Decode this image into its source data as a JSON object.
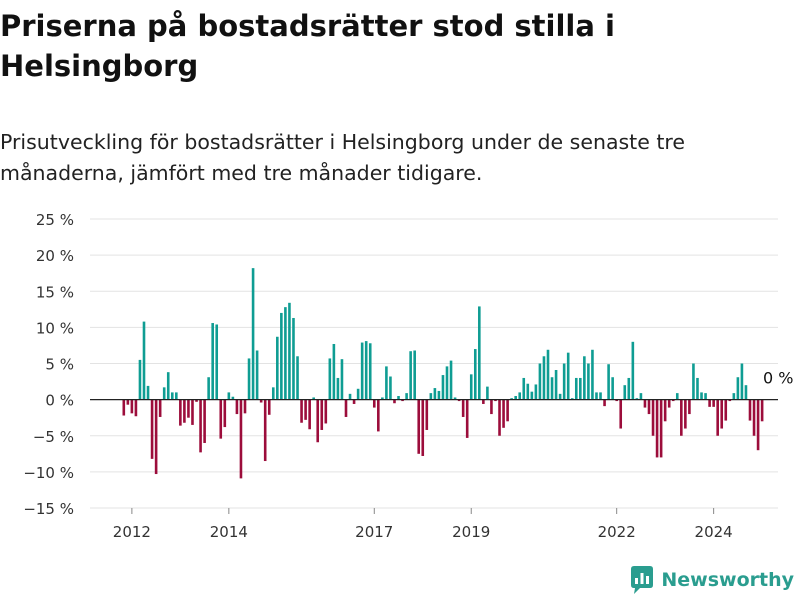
{
  "title": "Priserna på bostadsrätter stod stilla i Helsingborg",
  "subtitle": "Prisutveckling för bostadsrätter i Helsingborg under de senaste tre månaderna, jämfört med tre månader tidigare.",
  "brand": {
    "name": "Newsworthy",
    "icon": "newsworthy-logo-icon"
  },
  "colors": {
    "positive": "#0f9d93",
    "negative": "#9c0d3b",
    "grid": "#e3e3e3",
    "zero": "#222222",
    "text": "#333333"
  },
  "chart_data": {
    "type": "bar",
    "ylim": [
      -15,
      25
    ],
    "y_ticks": [
      25,
      20,
      15,
      10,
      5,
      0,
      -5,
      -10,
      -15
    ],
    "y_tick_labels": [
      "25 %",
      "20 %",
      "15 %",
      "10 %",
      "5 %",
      "0 %",
      "−5 %",
      "−10 %",
      "−15 %"
    ],
    "x_ticks": [
      {
        "label": "2012",
        "index": 2
      },
      {
        "label": "2014",
        "index": 26
      },
      {
        "label": "2017",
        "index": 62
      },
      {
        "label": "2019",
        "index": 86
      },
      {
        "label": "2022",
        "index": 122
      },
      {
        "label": "2024",
        "index": 146
      }
    ],
    "annotation": {
      "text": "0 %",
      "index": 161,
      "value": 0
    },
    "grid": true,
    "legend": "none",
    "series": [
      {
        "values": [
          -2.2,
          -0.7,
          -1.9,
          -2.3,
          5.5,
          10.8,
          1.9,
          -8.2,
          -10.3,
          -2.4,
          1.7,
          3.8,
          1.0,
          1.0,
          -3.6,
          -3.2,
          -2.5,
          -3.5,
          -0.3,
          -7.3,
          -6.0,
          3.1,
          10.6,
          10.4,
          -5.4,
          -3.8,
          1.0,
          0.4,
          -2.0,
          -10.9,
          -1.9,
          5.7,
          18.2,
          6.8,
          -0.4,
          -8.5,
          -2.1,
          1.7,
          8.7,
          12.0,
          12.8,
          13.4,
          11.3,
          6.0,
          -3.2,
          -2.8,
          -4.1,
          0.3,
          -5.9,
          -4.2,
          -3.3,
          5.7,
          7.7,
          3.0,
          5.6,
          -2.4,
          0.8,
          -0.6,
          1.5,
          7.9,
          8.1,
          7.8,
          -1.1,
          -4.4,
          0.3,
          4.6,
          3.2,
          -0.5,
          0.5,
          -0.2,
          0.9,
          6.7,
          6.8,
          -7.5,
          -7.8,
          -4.2,
          0.9,
          1.6,
          1.2,
          3.4,
          4.6,
          5.4,
          0.3,
          -0.2,
          -2.4,
          -5.3,
          3.5,
          7.0,
          12.9,
          -0.6,
          1.8,
          -2.0,
          -0.2,
          -5.0,
          -3.9,
          -3.0,
          0.2,
          0.5,
          1.0,
          3.0,
          2.2,
          1.1,
          2.1,
          5.0,
          6.0,
          6.9,
          3.1,
          4.1,
          0.8,
          5.0,
          6.5,
          0.2,
          3.0,
          3.0,
          6.0,
          5.0,
          6.9,
          1.0,
          1.0,
          -0.9,
          4.9,
          3.1,
          -0.2,
          -4.0,
          2.0,
          3.0,
          8.0,
          0.2,
          0.9,
          -1.1,
          -2.0,
          -5.0,
          -8.0,
          -8.0,
          -3.0,
          -1.1,
          -0.2,
          0.9,
          -5.0,
          -4.0,
          -2.0,
          5.0,
          3.0,
          1.0,
          0.9,
          -1.0,
          -1.0,
          -5.0,
          -4.0,
          -2.9,
          -0.2,
          0.9,
          3.1,
          5.0,
          2.0,
          -2.9,
          -5.0,
          -7.0,
          -3.0,
          0.0
        ]
      }
    ]
  }
}
